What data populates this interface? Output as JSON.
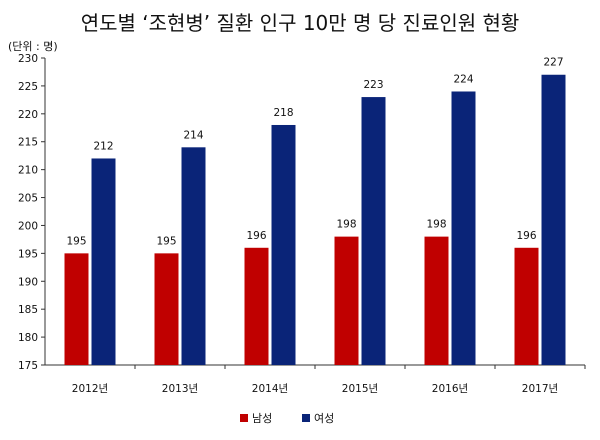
{
  "chart_data": {
    "type": "bar",
    "title": "연도별 ‘조현병’ 질환 인구 10만 명 당 진료인원 현황",
    "unit_label": "(단위 : 명)",
    "categories": [
      "2012년",
      "2013년",
      "2014년",
      "2015년",
      "2016년",
      "2017년"
    ],
    "series": [
      {
        "name": "남성",
        "color": "#c00000",
        "values": [
          195,
          195,
          196,
          198,
          198,
          196
        ]
      },
      {
        "name": "여성",
        "color": "#0a2478",
        "values": [
          212,
          214,
          218,
          223,
          224,
          227
        ]
      }
    ],
    "ylim": [
      175,
      230
    ],
    "yticks": [
      175,
      180,
      185,
      190,
      195,
      200,
      205,
      210,
      215,
      220,
      225,
      230
    ],
    "legend_position": "bottom-center",
    "grid": false
  }
}
